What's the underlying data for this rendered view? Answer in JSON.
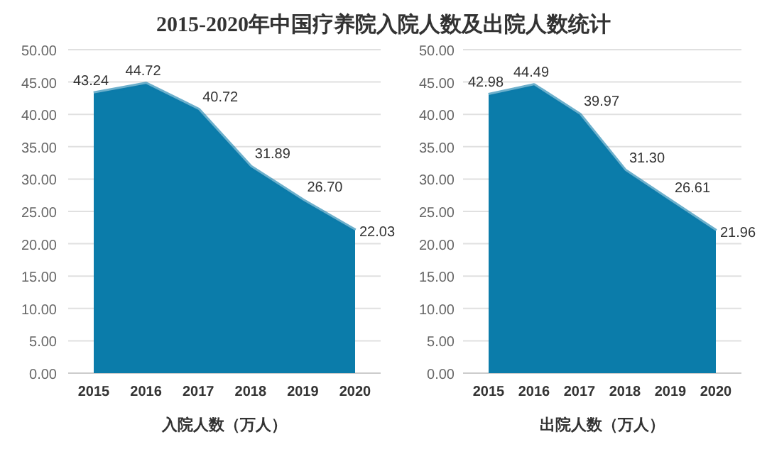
{
  "chart_data": [
    {
      "type": "area",
      "title": "2015-2020年中国疗养院入院人数及出院人数统计",
      "xlabel": "入院人数（万人）",
      "categories": [
        "2015",
        "2016",
        "2017",
        "2018",
        "2019",
        "2020"
      ],
      "series": [
        {
          "color": "#0b7caa",
          "values": [
            43.24,
            44.72,
            40.72,
            31.89,
            26.7,
            22.03
          ]
        }
      ],
      "ylim": [
        0,
        50
      ],
      "yticks": [
        {
          "value": 0,
          "label": "0.00"
        },
        {
          "value": 5,
          "label": "5.00"
        },
        {
          "value": 10,
          "label": "10.00"
        },
        {
          "value": 15,
          "label": "15.00"
        },
        {
          "value": 20,
          "label": "20.00"
        },
        {
          "value": 25,
          "label": "25.00"
        },
        {
          "value": 30,
          "label": "30.00"
        },
        {
          "value": 35,
          "label": "35.00"
        },
        {
          "value": 40,
          "label": "40.00"
        },
        {
          "value": 45,
          "label": "45.00"
        },
        {
          "value": 50,
          "label": "50.00"
        }
      ],
      "value_labels": [
        "43.24",
        "44.72",
        "40.72",
        "31.89",
        "26.70",
        "22.03"
      ],
      "grid": "y"
    },
    {
      "type": "area",
      "xlabel": "出院人数（万人）",
      "categories": [
        "2015",
        "2016",
        "2017",
        "2018",
        "2019",
        "2020"
      ],
      "series": [
        {
          "color": "#0b7caa",
          "values": [
            42.98,
            44.49,
            39.97,
            31.3,
            26.61,
            21.96
          ]
        }
      ],
      "ylim": [
        0,
        50
      ],
      "yticks": [
        {
          "value": 0,
          "label": "0.00"
        },
        {
          "value": 5,
          "label": "5.00"
        },
        {
          "value": 10,
          "label": "10.00"
        },
        {
          "value": 15,
          "label": "15.00"
        },
        {
          "value": 20,
          "label": "20.00"
        },
        {
          "value": 25,
          "label": "25.00"
        },
        {
          "value": 30,
          "label": "30.00"
        },
        {
          "value": 35,
          "label": "35.00"
        },
        {
          "value": 40,
          "label": "40.00"
        },
        {
          "value": 45,
          "label": "45.00"
        },
        {
          "value": 50,
          "label": "50.00"
        }
      ],
      "value_labels": [
        "42.98",
        "44.49",
        "39.97",
        "31.30",
        "26.61",
        "21.96"
      ],
      "grid": "y"
    }
  ]
}
